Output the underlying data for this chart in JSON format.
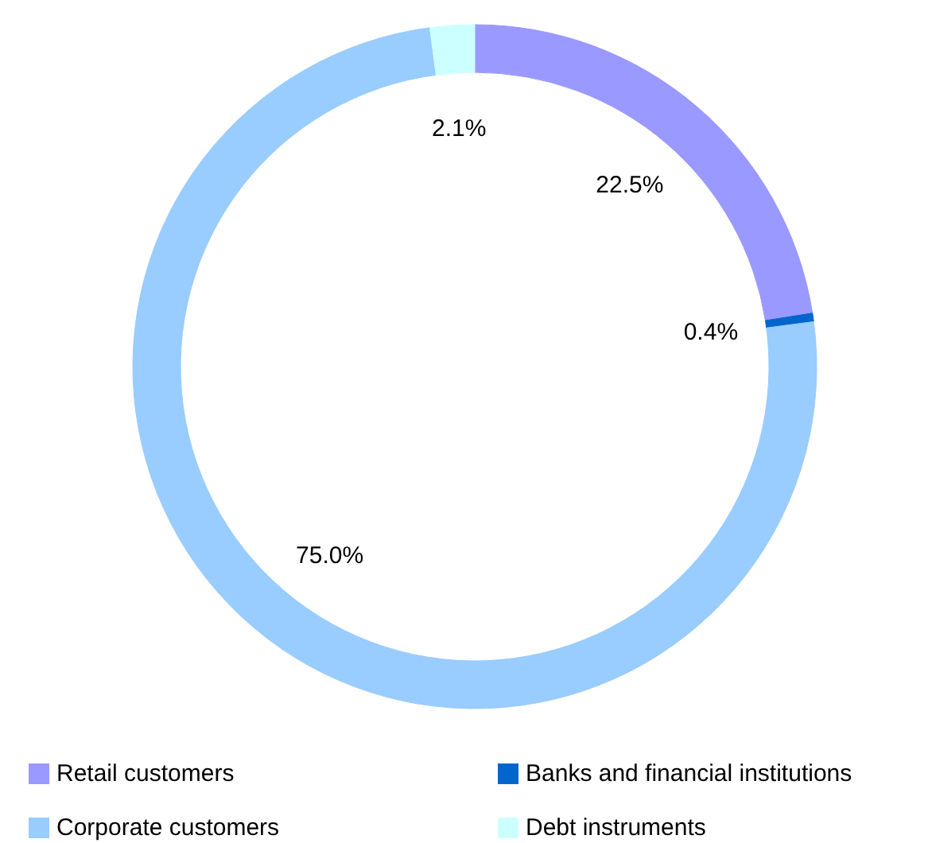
{
  "chart_data": {
    "type": "donut",
    "categories": [
      "Retail customers",
      "Banks and financial institutions",
      "Corporate customers",
      "Debt instruments"
    ],
    "values": [
      22.5,
      0.4,
      75.0,
      2.1
    ],
    "value_labels": [
      "22.5%",
      "0.4%",
      "75.0%",
      "2.1%"
    ],
    "colors": [
      "#9999ff",
      "#0066cc",
      "#99ccff",
      "#ccffff"
    ],
    "legend": "bottom"
  }
}
